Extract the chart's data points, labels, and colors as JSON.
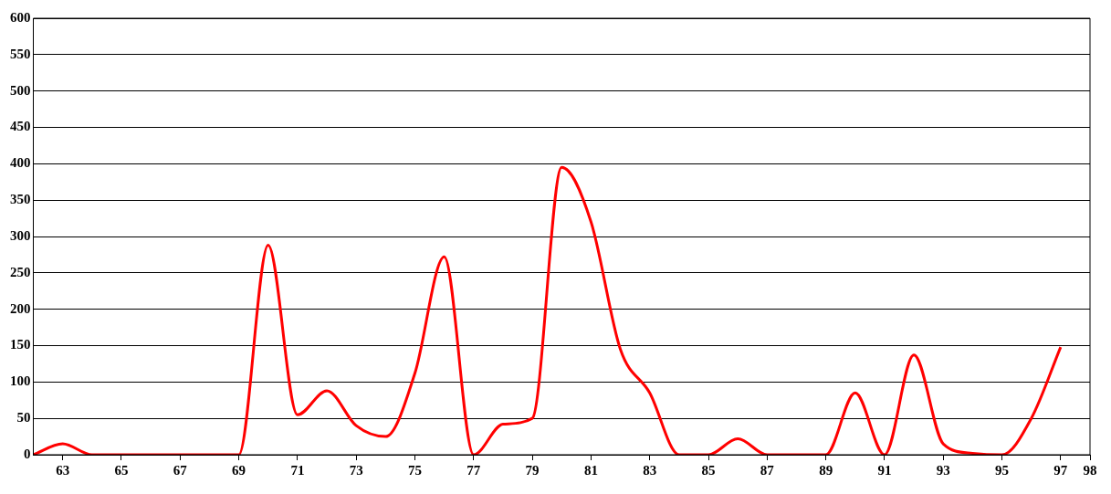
{
  "chart_data": {
    "type": "line",
    "x": [
      62,
      63,
      64,
      65,
      66,
      67,
      68,
      69,
      70,
      71,
      72,
      73,
      74,
      75,
      76,
      77,
      78,
      79,
      80,
      81,
      82,
      83,
      84,
      85,
      86,
      87,
      88,
      89,
      90,
      91,
      92,
      93,
      94,
      95,
      96,
      97
    ],
    "series": [
      {
        "color": "#ff0000",
        "values": [
          0,
          15,
          0,
          0,
          0,
          0,
          0,
          0,
          288,
          55,
          88,
          40,
          25,
          112,
          272,
          0,
          42,
          50,
          395,
          320,
          145,
          85,
          0,
          0,
          22,
          0,
          0,
          0,
          85,
          0,
          137,
          15,
          2,
          0,
          50,
          148
        ]
      }
    ],
    "xlim": [
      62,
      98
    ],
    "xticks": [
      63,
      65,
      67,
      69,
      71,
      73,
      75,
      77,
      79,
      81,
      83,
      85,
      87,
      89,
      91,
      93,
      95,
      97,
      98
    ],
    "ylim": [
      0,
      600
    ],
    "yticks": [
      0,
      50,
      100,
      150,
      200,
      250,
      300,
      350,
      400,
      450,
      500,
      550,
      600
    ],
    "grid": "y",
    "marker": "none",
    "line_style": "solid",
    "legend": false
  }
}
